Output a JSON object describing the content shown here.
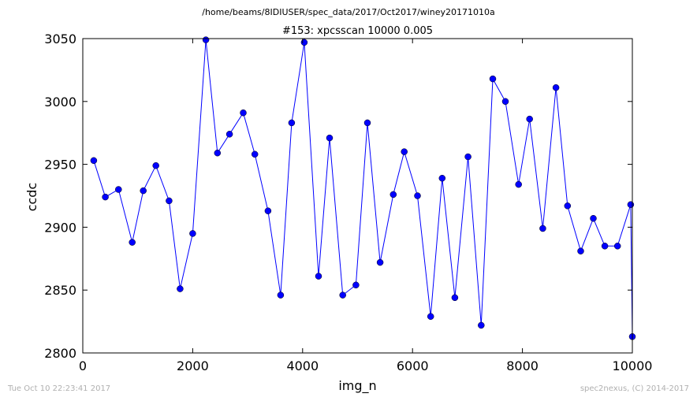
{
  "header": {
    "file_path": "/home/beams/8IDIUSER/spec_data/2017/Oct2017/winey20171010a"
  },
  "footer": {
    "timestamp": "Tue Oct 10 22:23:41 2017",
    "credit": "spec2nexus, (C) 2014-2017"
  },
  "chart_data": {
    "type": "line",
    "title": "#153: xpcsscan 10000 0.005",
    "xlabel": "img_n",
    "ylabel": "ccdc",
    "xlim": [
      0,
      10000
    ],
    "ylim": [
      2800,
      3050
    ],
    "xticks": [
      "0",
      "2000",
      "4000",
      "6000",
      "8000",
      "10000"
    ],
    "yticks": [
      "2800",
      "2850",
      "2900",
      "2950",
      "3000",
      "3050"
    ],
    "grid": false,
    "marker": "circle",
    "line_color": "#0000ff",
    "marker_color": "#0000ff",
    "series": [
      {
        "x": [
          200,
          410,
          650,
          900,
          1100,
          1330,
          1570,
          1770,
          2000,
          2240,
          2450,
          2670,
          2920,
          3130,
          3370,
          3600,
          3800,
          4030,
          4290,
          4490,
          4730,
          4970,
          5180,
          5410,
          5650,
          5850,
          6090,
          6330,
          6540,
          6770,
          7010,
          7250,
          7460,
          7690,
          7930,
          8130,
          8370,
          8610,
          8820,
          9060,
          9290,
          9500,
          9730,
          9970,
          10000
        ],
        "y": [
          2953,
          2924,
          2930,
          2888,
          2929,
          2949,
          2921,
          2851,
          2895,
          3049,
          2959,
          2974,
          2991,
          2958,
          2913,
          2846,
          2983,
          3047,
          2861,
          2971,
          2846,
          2854,
          2983,
          2872,
          2926,
          2960,
          2925,
          2829,
          2939,
          2844,
          2956,
          2822,
          3018,
          3000,
          2934,
          2986,
          2899,
          3011,
          2917,
          2881,
          2907,
          2885,
          2885,
          2918,
          2813
        ]
      }
    ]
  }
}
